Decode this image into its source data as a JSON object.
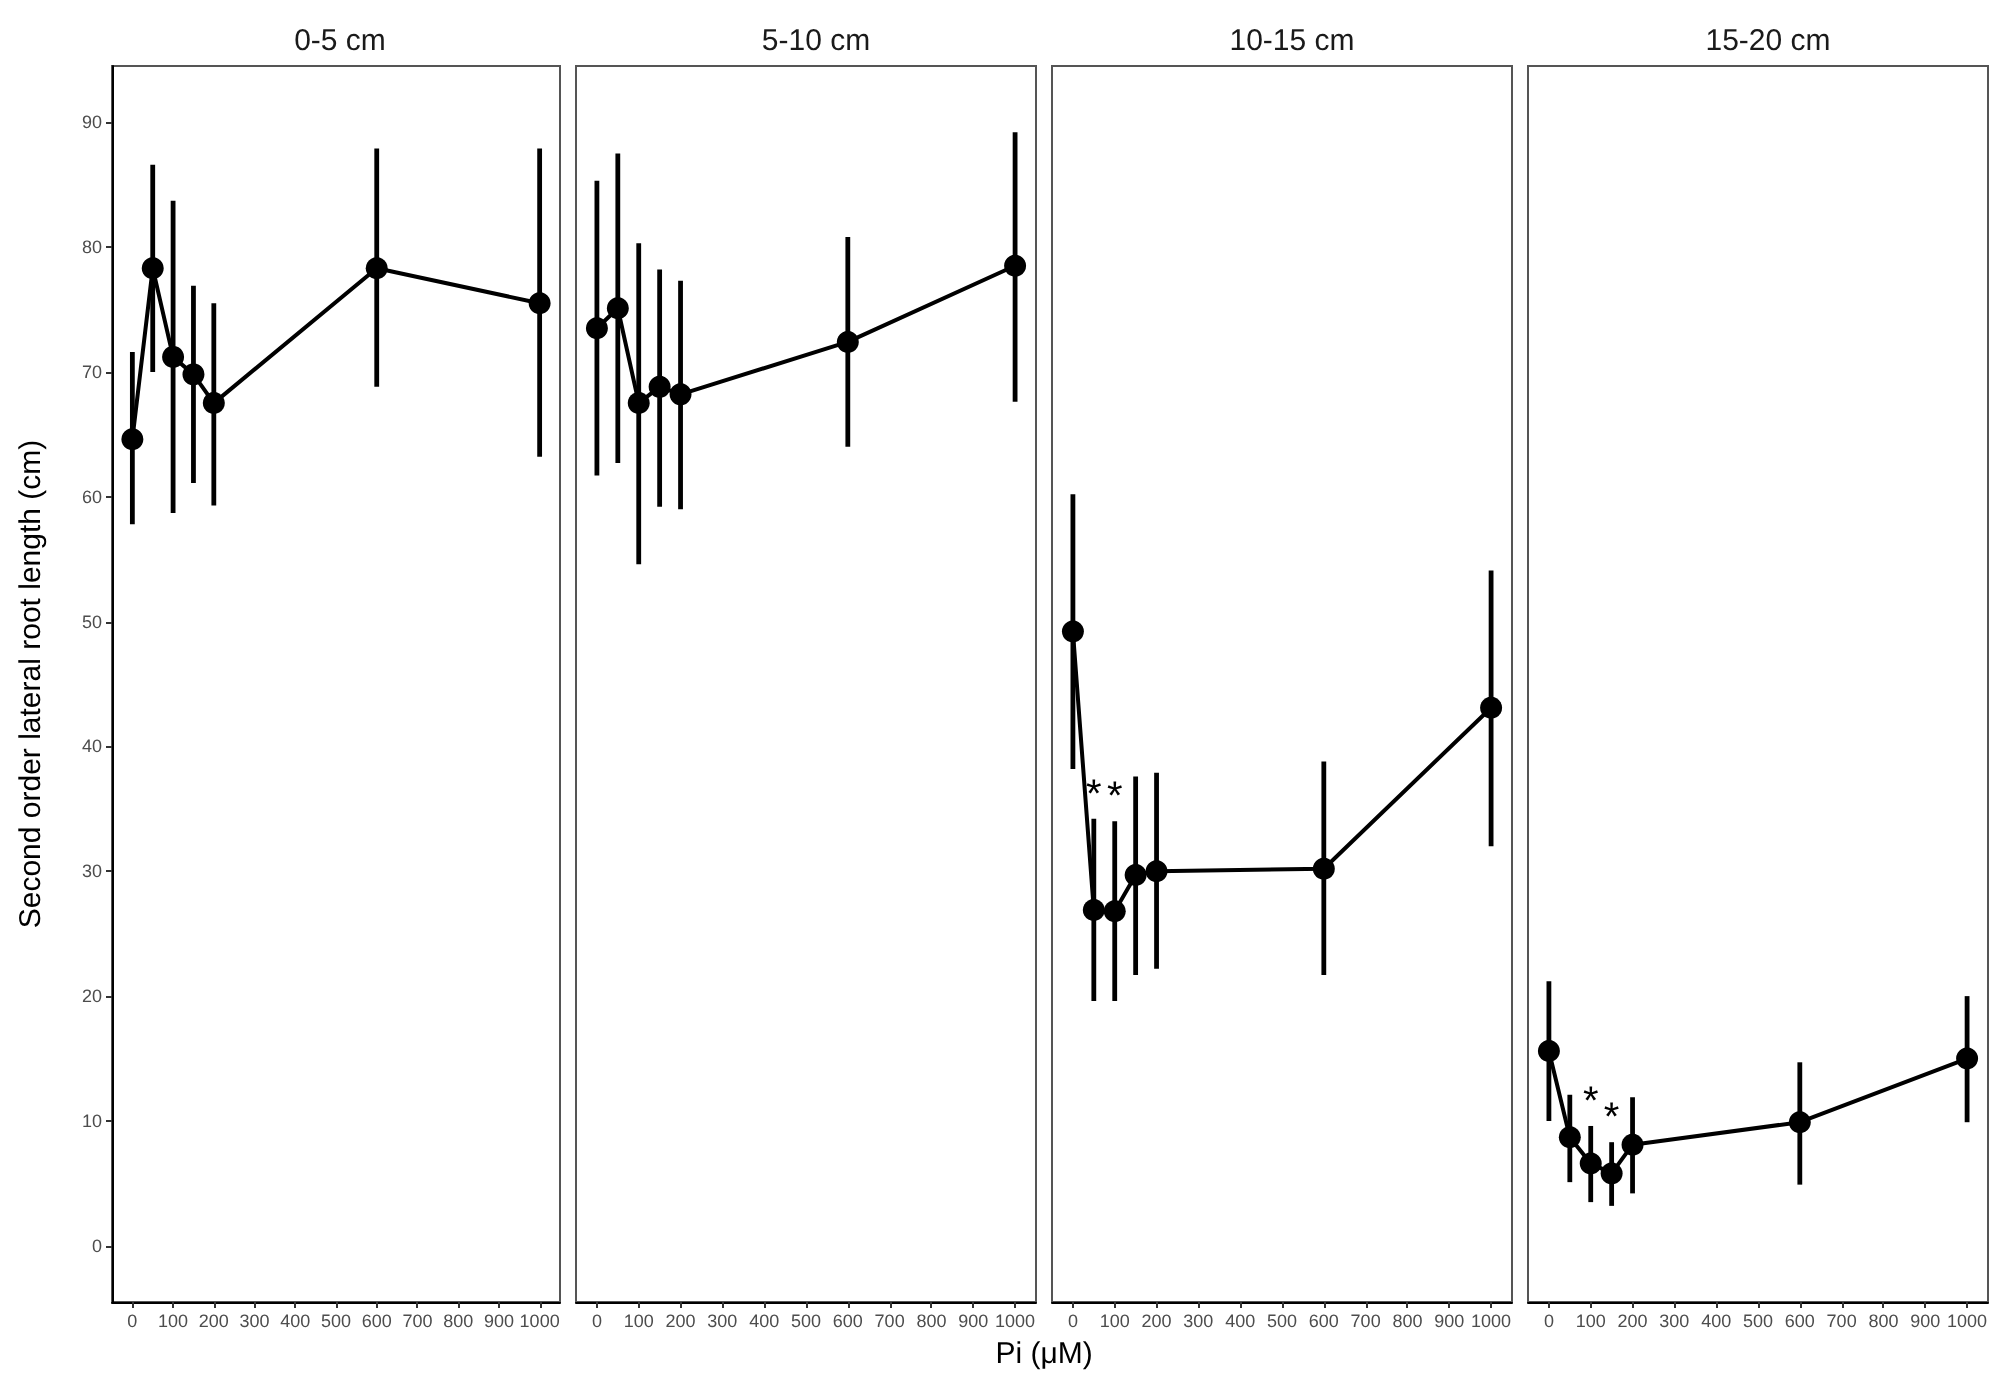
{
  "chart_data": [
    {
      "type": "line",
      "title": "0-5 cm",
      "ylabel": "Second order lateral root length (cm)",
      "x": [
        0,
        50,
        100,
        150,
        200,
        600,
        1000
      ],
      "series": [
        {
          "color": "#000000",
          "values": [
            64.6,
            78.3,
            71.2,
            69.8,
            67.5,
            78.3,
            75.5
          ],
          "errors": [
            [
              57.8,
              71.6
            ],
            [
              70.0,
              86.6
            ],
            [
              58.7,
              83.7
            ],
            [
              61.1,
              76.9
            ],
            [
              59.3,
              75.5
            ],
            [
              68.8,
              87.9
            ],
            [
              63.2,
              87.9
            ]
          ]
        }
      ],
      "xlim": [
        -50,
        1050
      ],
      "xticks": [
        0,
        100,
        200,
        300,
        400,
        500,
        600,
        700,
        800,
        900,
        1000
      ],
      "ylim": [
        -4.5,
        94.5
      ],
      "yticks": [
        0,
        10,
        20,
        30,
        40,
        50,
        60,
        70,
        80,
        90
      ],
      "grid": false,
      "marker": "circle",
      "line_style": "solid"
    },
    {
      "type": "line",
      "title": "5-10 cm",
      "xlabel": "Pi (μM)",
      "x": [
        0,
        50,
        100,
        150,
        200,
        600,
        1000
      ],
      "series": [
        {
          "color": "#000000",
          "values": [
            73.5,
            75.1,
            67.5,
            68.8,
            68.2,
            72.4,
            78.5
          ],
          "errors": [
            [
              61.7,
              85.3
            ],
            [
              62.7,
              87.5
            ],
            [
              54.6,
              80.3
            ],
            [
              59.2,
              78.2
            ],
            [
              59.0,
              77.3
            ],
            [
              64.0,
              80.8
            ],
            [
              67.6,
              89.2
            ]
          ]
        }
      ],
      "xlim": [
        -50,
        1050
      ],
      "xticks": [
        0,
        100,
        200,
        300,
        400,
        500,
        600,
        700,
        800,
        900,
        1000
      ],
      "ylim": [
        -4.5,
        94.5
      ],
      "yticks": [
        0,
        10,
        20,
        30,
        40,
        50,
        60,
        70,
        80,
        90
      ],
      "tick_labels": "x",
      "grid": false,
      "marker": "circle",
      "line_style": "solid"
    },
    {
      "type": "line",
      "title": "10-15 cm",
      "x": [
        0,
        50,
        100,
        150,
        200,
        600,
        1000
      ],
      "series": [
        {
          "color": "#000000",
          "values": [
            49.2,
            26.9,
            26.8,
            29.7,
            30.0,
            30.2,
            43.1
          ],
          "errors": [
            [
              38.2,
              60.2
            ],
            [
              19.6,
              34.2
            ],
            [
              19.6,
              34.0
            ],
            [
              21.7,
              37.6
            ],
            [
              22.2,
              37.9
            ],
            [
              21.7,
              38.8
            ],
            [
              32.0,
              54.1
            ]
          ]
        }
      ],
      "xlim": [
        -50,
        1050
      ],
      "xticks": [
        0,
        100,
        200,
        300,
        400,
        500,
        600,
        700,
        800,
        900,
        1000
      ],
      "ylim": [
        -4.5,
        94.5
      ],
      "yticks": [
        0,
        10,
        20,
        30,
        40,
        50,
        60,
        70,
        80,
        90
      ],
      "tick_labels": "x",
      "grid": false,
      "marker": "circle",
      "line_style": "solid",
      "annotations": [
        {
          "text": "*",
          "x": 50,
          "y": 34.2
        },
        {
          "text": "*",
          "x": 100,
          "y": 34.0
        }
      ]
    },
    {
      "type": "line",
      "title": "15-20 cm",
      "x": [
        0,
        50,
        100,
        150,
        200,
        600,
        1000
      ],
      "series": [
        {
          "color": "#000000",
          "values": [
            15.6,
            8.7,
            6.6,
            5.8,
            8.1,
            9.9,
            15.0
          ],
          "errors": [
            [
              10.0,
              21.2
            ],
            [
              5.1,
              12.1
            ],
            [
              3.5,
              9.6
            ],
            [
              3.2,
              8.3
            ],
            [
              4.2,
              11.9
            ],
            [
              4.9,
              14.7
            ],
            [
              9.9,
              20.0
            ]
          ]
        }
      ],
      "xlim": [
        -50,
        1050
      ],
      "xticks": [
        0,
        100,
        200,
        300,
        400,
        500,
        600,
        700,
        800,
        900,
        1000
      ],
      "ylim": [
        -4.5,
        94.5
      ],
      "yticks": [
        0,
        10,
        20,
        30,
        40,
        50,
        60,
        70,
        80,
        90
      ],
      "tick_labels": "x",
      "grid": false,
      "marker": "circle",
      "line_style": "solid",
      "annotations": [
        {
          "text": "*",
          "x": 100,
          "y": 9.6
        },
        {
          "text": "*",
          "x": 150,
          "y": 8.3
        }
      ]
    }
  ]
}
